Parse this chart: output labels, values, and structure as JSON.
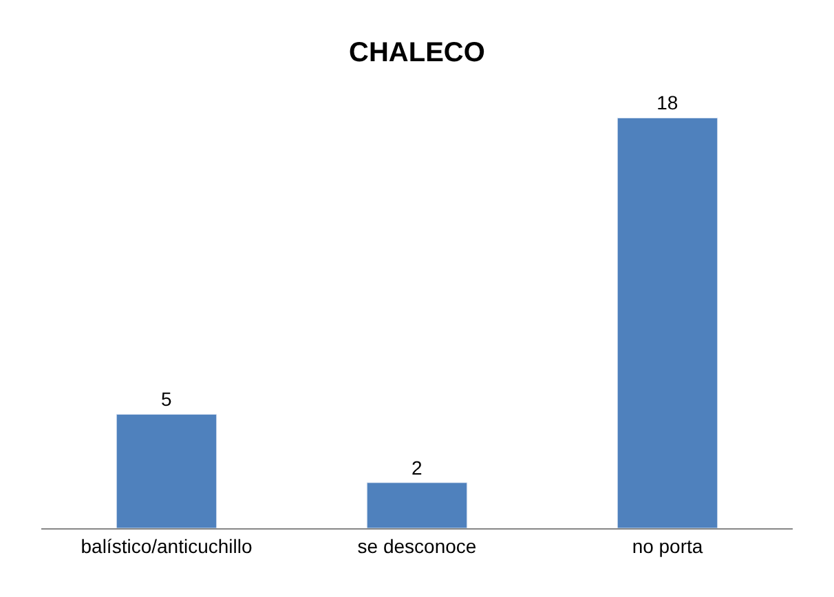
{
  "chart_data": {
    "type": "bar",
    "title": "CHALECO",
    "categories": [
      "balístico/anticuchillo",
      "se desconoce",
      "no porta"
    ],
    "values": [
      5,
      2,
      18
    ],
    "color": "#4f81bd",
    "data_labels": true
  }
}
